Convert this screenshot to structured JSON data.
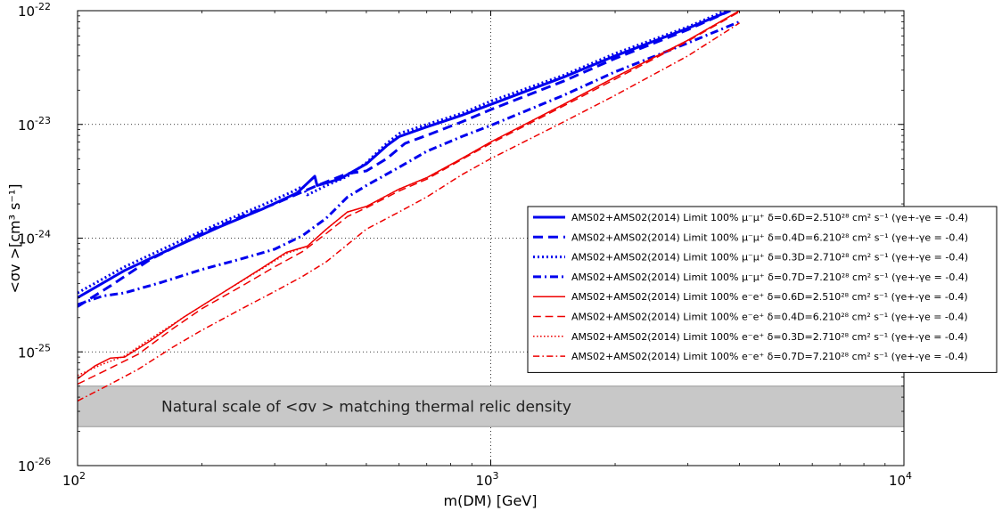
{
  "chart_data": {
    "type": "line",
    "x_scale": "log",
    "y_scale": "log",
    "xlim": [
      100,
      10000
    ],
    "ylim": [
      1e-26,
      1e-22
    ],
    "grid": true,
    "xlabel": "m(DM) [GeV]",
    "ylabel": "<σv >[cm³ s⁻¹]",
    "x_ticks": [
      {
        "value": 100,
        "base": "10",
        "exp": "2"
      },
      {
        "value": 1000,
        "base": "10",
        "exp": "3"
      },
      {
        "value": 10000,
        "base": "10",
        "exp": "4"
      }
    ],
    "y_ticks": [
      {
        "value": 1e-26,
        "base": "10",
        "exp": "-26"
      },
      {
        "value": 1e-25,
        "base": "10",
        "exp": "-25"
      },
      {
        "value": 1e-24,
        "base": "10",
        "exp": "-24"
      },
      {
        "value": 1e-23,
        "base": "10",
        "exp": "-23"
      },
      {
        "value": 1e-22,
        "base": "10",
        "exp": "-22"
      }
    ],
    "band": {
      "label": "Natural scale of  <σv > matching thermal relic density",
      "y_low": 2.2e-26,
      "y_high": 5e-26,
      "color": "#c8c8c8"
    },
    "legend_position": "right",
    "series": [
      {
        "name": "AMS02+AMS02(2014) Limit 100% μ⁻μ⁺ δ=0.6D=2.510²⁸ cm² s⁻¹ (γe+-γe = -0.4)",
        "color": "#0000ee",
        "style": "solid",
        "width": 3,
        "x": [
          100,
          130,
          170,
          220,
          280,
          340,
          375,
          380,
          430,
          500,
          560,
          600,
          700,
          850,
          1000,
          1500,
          2000,
          3000,
          3800
        ],
        "y": [
          3e-25,
          5.2e-25,
          8.2e-25,
          1.25e-24,
          1.8e-24,
          2.5e-24,
          3.5e-24,
          2.9e-24,
          3.3e-24,
          4.5e-24,
          6.5e-24,
          7.8e-24,
          9.5e-24,
          1.2e-23,
          1.5e-23,
          2.6e-23,
          4e-23,
          7e-23,
          1e-22
        ]
      },
      {
        "name": "AMS02+AMS02(2014) Limit 100% μ⁻μ⁺ δ=0.4D=6.210²⁸ cm² s⁻¹ (γe+-γe = -0.4)",
        "color": "#0000ee",
        "style": "dash",
        "width": 3,
        "x": [
          100,
          120,
          150,
          200,
          260,
          300,
          380,
          450,
          500,
          560,
          620,
          700,
          850,
          1000,
          1500,
          2000,
          3000,
          3800
        ],
        "y": [
          2.5e-25,
          3.8e-25,
          6.5e-25,
          1.1e-24,
          1.65e-24,
          2e-24,
          2.9e-24,
          3.7e-24,
          3.9e-24,
          5e-24,
          6.8e-24,
          8e-24,
          1.05e-23,
          1.35e-23,
          2.4e-23,
          3.8e-23,
          6.8e-23,
          1e-22
        ]
      },
      {
        "name": "AMS02+AMS02(2014) Limit 100% μ⁻μ⁺ δ=0.3D=2.710²⁸ cm² s⁻¹ (γe+-γe = -0.4)",
        "color": "#0000ee",
        "style": "dot",
        "width": 3,
        "x": [
          100,
          130,
          170,
          220,
          280,
          330,
          350,
          360,
          400,
          450,
          500,
          560,
          600,
          700,
          850,
          1000,
          1500,
          2000,
          3000,
          3700
        ],
        "y": [
          3.3e-25,
          5.6e-25,
          8.8e-25,
          1.35e-24,
          1.95e-24,
          2.55e-24,
          2.85e-24,
          2.4e-24,
          2.9e-24,
          3.5e-24,
          4.6e-24,
          6.8e-24,
          8.3e-24,
          1e-23,
          1.25e-23,
          1.6e-23,
          2.7e-23,
          4.2e-23,
          7.2e-23,
          1e-22
        ]
      },
      {
        "name": "AMS02+AMS02(2014) Limit 100% μ⁻μ⁺ δ=0.7D=7.210²⁸ cm² s⁻¹ (γe+-γe = -0.4)",
        "color": "#0000ee",
        "style": "dashdot",
        "width": 3,
        "x": [
          100,
          115,
          130,
          160,
          200,
          250,
          300,
          350,
          400,
          450,
          500,
          600,
          700,
          850,
          1000,
          1500,
          2000,
          3000,
          4000
        ],
        "y": [
          2.6e-25,
          3.1e-25,
          3.3e-25,
          4.1e-25,
          5.3e-25,
          6.6e-25,
          8e-25,
          1.05e-24,
          1.5e-24,
          2.3e-24,
          2.9e-24,
          4.2e-24,
          5.8e-24,
          7.8e-24,
          9.8e-24,
          1.8e-23,
          2.9e-23,
          5.2e-23,
          8e-23
        ]
      },
      {
        "name": "AMS02+AMS02(2014) Limit 100% e⁻e⁺ δ=0.6D=2.510²⁸ cm² s⁻¹ (γe+-γe = -0.4)",
        "color": "#ee0000",
        "style": "solid",
        "width": 1.5,
        "x": [
          100,
          110,
          120,
          130,
          150,
          180,
          230,
          280,
          320,
          360,
          400,
          450,
          500,
          600,
          700,
          850,
          1000,
          1500,
          2000,
          3000,
          4000
        ],
        "y": [
          5.8e-26,
          7.5e-26,
          8.8e-26,
          9e-26,
          1.25e-25,
          2e-25,
          3.5e-25,
          5.5e-25,
          7.5e-25,
          8.5e-25,
          1.2e-24,
          1.7e-24,
          1.9e-24,
          2.7e-24,
          3.4e-24,
          5e-24,
          7e-24,
          1.5e-23,
          2.6e-23,
          5.5e-23,
          1e-22
        ]
      },
      {
        "name": "AMS02+AMS02(2014) Limit 100% e⁻e⁺ δ=0.4D=6.210²⁸ cm² s⁻¹ (γe+-γe = -0.4)",
        "color": "#ee0000",
        "style": "dash",
        "width": 1.5,
        "x": [
          100,
          120,
          140,
          170,
          200,
          250,
          300,
          350,
          400,
          450,
          500,
          600,
          700,
          850,
          1000,
          1500,
          2000,
          3000,
          4000
        ],
        "y": [
          5.2e-26,
          7.2e-26,
          9.5e-26,
          1.6e-25,
          2.4e-25,
          3.8e-25,
          5.6e-25,
          7.6e-25,
          1.1e-24,
          1.55e-24,
          1.85e-24,
          2.6e-24,
          3.3e-24,
          4.9e-24,
          6.8e-24,
          1.45e-23,
          2.5e-23,
          5.4e-23,
          9.8e-23
        ]
      },
      {
        "name": "AMS02+AMS02(2014) Limit 100% e⁻e⁺ δ=0.3D=2.710²⁸ cm² s⁻¹ (γe+-γe = -0.4)",
        "color": "#ee0000",
        "style": "dot",
        "width": 1.5,
        "x": [
          100,
          115,
          130,
          150,
          180,
          230,
          280,
          320,
          360,
          400,
          450,
          500,
          600,
          700,
          850,
          1000,
          1500,
          2000,
          3000,
          4000
        ],
        "y": [
          6.2e-26,
          7.8e-26,
          9.2e-26,
          1.3e-25,
          2e-25,
          3.5e-25,
          5.4e-25,
          7.3e-25,
          8.5e-25,
          1.2e-24,
          1.7e-24,
          1.9e-24,
          2.7e-24,
          3.4e-24,
          5e-24,
          7e-24,
          1.5e-23,
          2.6e-23,
          5.5e-23,
          1e-22
        ]
      },
      {
        "name": "AMS02+AMS02(2014) Limit 100% e⁻e⁺ δ=0.7D=7.210²⁸ cm² s⁻¹ (γe+-γe = -0.4)",
        "color": "#ee0000",
        "style": "dashdot",
        "width": 1.5,
        "x": [
          100,
          120,
          140,
          170,
          200,
          250,
          300,
          350,
          400,
          500,
          600,
          700,
          850,
          1000,
          1500,
          2000,
          3000,
          4000
        ],
        "y": [
          3.7e-26,
          5.2e-26,
          7e-26,
          1.1e-25,
          1.55e-25,
          2.4e-25,
          3.4e-25,
          4.6e-25,
          6.2e-25,
          1.2e-24,
          1.7e-24,
          2.3e-24,
          3.6e-24,
          5e-24,
          1.05e-23,
          1.8e-23,
          4e-23,
          7.8e-23
        ]
      }
    ]
  }
}
